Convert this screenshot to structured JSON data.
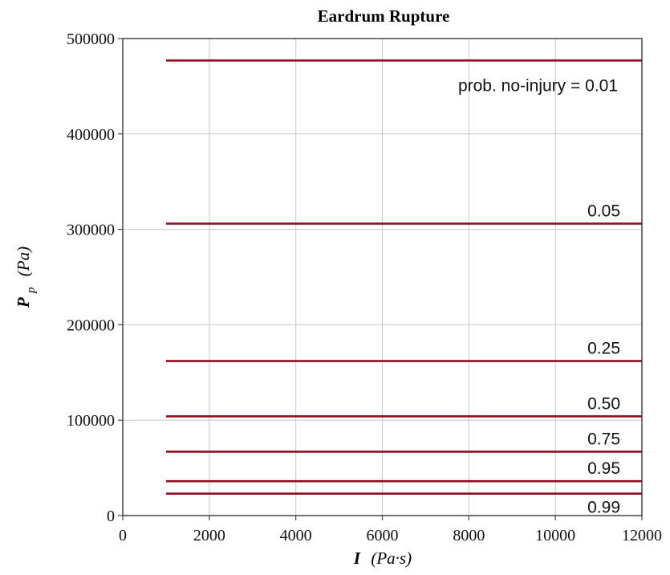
{
  "chart_data": {
    "type": "line",
    "title": "Eardrum Rupture",
    "xlabel": {
      "symbol": "I",
      "unit": "(Pa·s)"
    },
    "ylabel": {
      "symbol": "P",
      "subscript": "p",
      "unit": "(Pa)"
    },
    "xlim": [
      0,
      12000
    ],
    "ylim": [
      0,
      500000
    ],
    "xticks": [
      0,
      2000,
      4000,
      6000,
      8000,
      10000,
      12000
    ],
    "yticks": [
      0,
      100000,
      200000,
      300000,
      400000,
      500000
    ],
    "xtick_labels": [
      "0",
      "2000",
      "4000",
      "6000",
      "8000",
      "10000",
      "12000"
    ],
    "ytick_labels": [
      "0",
      "100000",
      "200000",
      "300000",
      "400000",
      "500000"
    ],
    "grid": true,
    "line_color": "#8b0f1f",
    "series": [
      {
        "name": "prob. no-injury  = 0.01",
        "x": [
          1000,
          12000
        ],
        "y": [
          477000,
          477000
        ]
      },
      {
        "name": "0.05",
        "x": [
          1000,
          12000
        ],
        "y": [
          306000,
          306000
        ]
      },
      {
        "name": "0.25",
        "x": [
          1000,
          12000
        ],
        "y": [
          162000,
          162000
        ]
      },
      {
        "name": "0.50",
        "x": [
          1000,
          12000
        ],
        "y": [
          104000,
          104000
        ]
      },
      {
        "name": "0.75",
        "x": [
          1000,
          12000
        ],
        "y": [
          67000,
          67000
        ]
      },
      {
        "name": "0.95",
        "x": [
          1000,
          12000
        ],
        "y": [
          36000,
          36000
        ]
      },
      {
        "name": "0.99",
        "x": [
          1000,
          12000
        ],
        "y": [
          23000,
          23000
        ]
      }
    ]
  }
}
